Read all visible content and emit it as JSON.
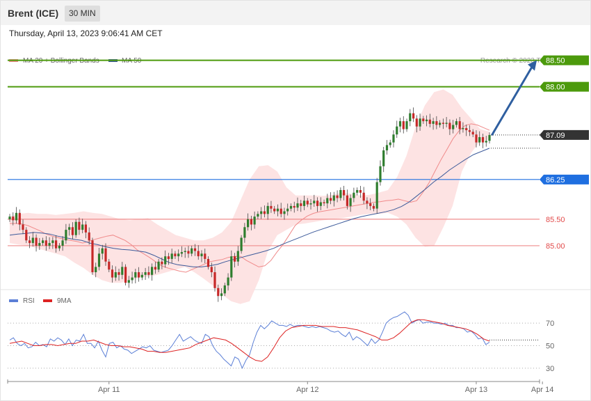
{
  "header": {
    "instrument": "Brent (ICE)",
    "timeframe": "30 MIN",
    "datetime": "Thursday, April 13, 2023 9:06:41 AM CET"
  },
  "legend": {
    "ma20_label": "MA 20 + Bollinger Bands",
    "ma50_label": "MA 50",
    "rsi_label": "RSI",
    "ma9_label": "9MA",
    "credit": "Research © 2023 Trading Central"
  },
  "colors": {
    "ma20": "#f08a8a",
    "ma50": "#3c5a9a",
    "bollinger_fill": "#fde0e0",
    "candle_up": "#2e7d2e",
    "candle_down": "#c62828",
    "resistance": "#4c9a0c",
    "pivot": "#1f6fe0",
    "support": "#ef8c8c",
    "current": "#333333",
    "arrow": "#2f5fa0",
    "rsi": "#5b7fd6",
    "rsi_ma": "#dd2222"
  },
  "chart_data": [
    {
      "type": "candlestick",
      "title": "Brent (ICE) 30 MIN",
      "ylim": [
        84.25,
        88.85
      ],
      "x_labels": [
        "Apr 11",
        "Apr 12",
        "Apr 13",
        "Apr 14"
      ],
      "x_label_positions": [
        30,
        90,
        141,
        161
      ],
      "levels": [
        {
          "value": 88.5,
          "label": "88.50",
          "kind": "resistance"
        },
        {
          "value": 88.0,
          "label": "88.00",
          "kind": "resistance"
        },
        {
          "value": 87.09,
          "label": "87.09",
          "kind": "current"
        },
        {
          "value": 86.25,
          "label": "86.25",
          "kind": "pivot"
        },
        {
          "value": 85.5,
          "label": "85.50",
          "kind": "support"
        },
        {
          "value": 85.0,
          "label": "85.00",
          "kind": "support"
        }
      ],
      "closes": [
        85.55,
        85.48,
        85.62,
        85.4,
        85.3,
        85.1,
        85.05,
        85.15,
        85.0,
        85.05,
        85.1,
        85.0,
        85.05,
        85.1,
        84.95,
        85.0,
        85.1,
        85.3,
        85.35,
        85.2,
        85.45,
        85.3,
        85.4,
        85.25,
        85.1,
        84.5,
        84.6,
        84.85,
        84.95,
        84.7,
        84.55,
        84.4,
        84.5,
        84.45,
        84.6,
        84.3,
        84.35,
        84.4,
        84.5,
        84.4,
        84.45,
        84.5,
        84.45,
        84.6,
        84.55,
        84.7,
        84.65,
        84.8,
        84.75,
        84.85,
        84.8,
        84.85,
        84.88,
        84.9,
        84.85,
        84.95,
        84.9,
        84.8,
        84.85,
        84.75,
        84.6,
        84.5,
        84.2,
        84.05,
        84.1,
        84.25,
        84.4,
        84.8,
        84.7,
        84.9,
        85.15,
        85.35,
        85.5,
        85.4,
        85.55,
        85.6,
        85.65,
        85.6,
        85.75,
        85.7,
        85.65,
        85.7,
        85.6,
        85.65,
        85.7,
        85.75,
        85.72,
        85.8,
        85.75,
        85.85,
        85.78,
        85.8,
        85.85,
        85.75,
        85.82,
        85.8,
        85.9,
        85.85,
        85.95,
        85.9,
        86.05,
        85.95,
        85.75,
        85.9,
        86.0,
        86.05,
        86.0,
        85.85,
        85.8,
        85.75,
        85.7,
        86.2,
        86.5,
        86.8,
        86.9,
        86.95,
        87.1,
        87.25,
        87.35,
        87.2,
        87.35,
        87.5,
        87.4,
        87.25,
        87.4,
        87.35,
        87.38,
        87.3,
        87.35,
        87.28,
        87.32,
        87.3,
        87.32,
        87.2,
        87.28,
        87.35,
        87.2,
        87.22,
        87.18,
        87.15,
        87.1,
        86.95,
        87.05,
        86.95,
        86.98,
        87.09
      ],
      "ma20": [
        85.42,
        85.42,
        85.41,
        85.38,
        85.33,
        85.28,
        85.22,
        85.18,
        85.15,
        85.12,
        85.1,
        85.08,
        85.05,
        85.08,
        85.12,
        85.15,
        85.18,
        85.2,
        85.15,
        85.1,
        85.02,
        84.92,
        84.85,
        84.78,
        84.7,
        84.62,
        84.58,
        84.55,
        84.52,
        84.5,
        84.55,
        84.6,
        84.65,
        84.7,
        84.72,
        84.74,
        84.78,
        84.8,
        84.8,
        84.72,
        84.66,
        84.6,
        84.62,
        84.72,
        84.88,
        85.02,
        85.2,
        85.38,
        85.48,
        85.56,
        85.61,
        85.64,
        85.66,
        85.68,
        85.7,
        85.72,
        85.74,
        85.76,
        85.78,
        85.8,
        85.82,
        85.83,
        85.85,
        85.86,
        85.88,
        85.85,
        85.82,
        85.85,
        86.0,
        86.18,
        86.4,
        86.62,
        86.82,
        87.02,
        87.17,
        87.27,
        87.3,
        87.28,
        87.23,
        87.18
      ],
      "ma50": [
        85.2,
        85.22,
        85.23,
        85.25,
        85.24,
        85.22,
        85.18,
        85.15,
        85.12,
        85.1,
        85.05,
        85.02,
        84.98,
        84.95,
        84.93,
        84.92,
        84.9,
        84.88,
        84.82,
        84.75,
        84.68,
        84.64,
        84.62,
        84.6,
        84.6,
        84.62,
        84.65,
        84.7,
        84.74,
        84.78,
        84.82,
        84.86,
        84.9,
        84.95,
        85.02,
        85.08,
        85.14,
        85.2,
        85.26,
        85.31,
        85.36,
        85.41,
        85.46,
        85.51,
        85.55,
        85.58,
        85.61,
        85.64,
        85.68,
        85.74,
        85.83,
        85.95,
        86.07,
        86.2,
        86.31,
        86.43,
        86.53,
        86.63,
        86.72,
        86.78,
        86.84
      ],
      "bollinger_upper": [
        85.55,
        85.6,
        85.62,
        85.6,
        85.6,
        85.58,
        85.6,
        85.62,
        85.65,
        85.62,
        85.6,
        85.55,
        85.5,
        85.48,
        85.5,
        85.52,
        85.4,
        85.3,
        85.2,
        85.15,
        85.1,
        85.1,
        85.15,
        85.25,
        85.45,
        85.85,
        86.25,
        86.5,
        86.52,
        86.4,
        86.1,
        85.95,
        85.95,
        85.95,
        85.94,
        85.96,
        86.0,
        85.98,
        85.95,
        85.96,
        86.0,
        86.05,
        86.3,
        86.7,
        87.25,
        87.65,
        87.9,
        87.95,
        87.85,
        87.6,
        87.4,
        87.2,
        87.15
      ],
      "bollinger_lower": [
        85.05,
        85.02,
        85.0,
        84.95,
        84.9,
        84.85,
        84.8,
        84.68,
        84.58,
        84.45,
        84.35,
        84.3,
        84.3,
        84.35,
        84.4,
        84.42,
        84.45,
        84.5,
        84.55,
        84.6,
        84.5,
        84.38,
        84.25,
        84.08,
        83.95,
        83.9,
        83.95,
        84.35,
        84.9,
        85.2,
        85.3,
        85.4,
        85.42,
        85.45,
        85.48,
        85.5,
        85.52,
        85.55,
        85.58,
        85.6,
        85.6,
        85.62,
        85.55,
        85.4,
        85.15,
        84.98,
        85.0,
        85.35,
        85.75,
        86.4,
        86.75,
        86.98,
        87.0
      ],
      "target_arrow": {
        "from": 87.1,
        "to": 88.5
      }
    },
    {
      "type": "line",
      "title": "RSI",
      "ylim": [
        20,
        80
      ],
      "y_ticks": [
        30,
        50,
        70
      ],
      "series": [
        {
          "name": "RSI",
          "values": [
            55,
            57,
            52,
            50,
            52,
            48,
            49,
            53,
            50,
            51,
            49,
            56,
            54,
            57,
            55,
            51,
            56,
            50,
            55,
            54,
            60,
            52,
            52,
            48,
            54,
            46,
            40,
            52,
            53,
            48,
            50,
            47,
            46,
            43,
            45,
            47,
            49,
            48,
            50,
            46,
            45,
            44,
            45,
            46,
            50,
            55,
            60,
            54,
            56,
            58,
            55,
            53,
            52,
            60,
            58,
            50,
            45,
            42,
            38,
            35,
            32,
            40,
            38,
            30,
            37,
            42,
            53,
            62,
            68,
            65,
            68,
            72,
            70,
            68,
            68,
            67,
            69,
            67,
            68,
            68,
            67,
            66,
            67,
            66,
            67,
            66,
            65,
            63,
            62,
            63,
            60,
            58,
            62,
            55,
            58,
            56,
            53,
            50,
            56,
            52,
            55,
            62,
            70,
            73,
            75,
            76,
            78,
            80,
            77,
            70,
            72,
            73,
            70,
            71,
            71,
            70,
            70,
            69,
            70,
            68,
            68,
            66,
            66,
            65,
            62,
            63,
            60,
            56,
            57,
            51,
            53
          ]
        },
        {
          "name": "9MA",
          "values": [
            52,
            53,
            54,
            52,
            50,
            50,
            51,
            51,
            50,
            51,
            52,
            52,
            54,
            54,
            55,
            53,
            51,
            50,
            50,
            49,
            49,
            48,
            47,
            45,
            45,
            44,
            44,
            45,
            46,
            47,
            48,
            51,
            53,
            55,
            57,
            56,
            55,
            52,
            48,
            44,
            40,
            37,
            36,
            40,
            48,
            57,
            63,
            66,
            67,
            68,
            68,
            68,
            67,
            67,
            67,
            66,
            66,
            65,
            64,
            62,
            60,
            58,
            55,
            55,
            57,
            61,
            66,
            71,
            73,
            73,
            72,
            71,
            70,
            68,
            67,
            66,
            65,
            63,
            60,
            56,
            54
          ]
        }
      ]
    }
  ]
}
